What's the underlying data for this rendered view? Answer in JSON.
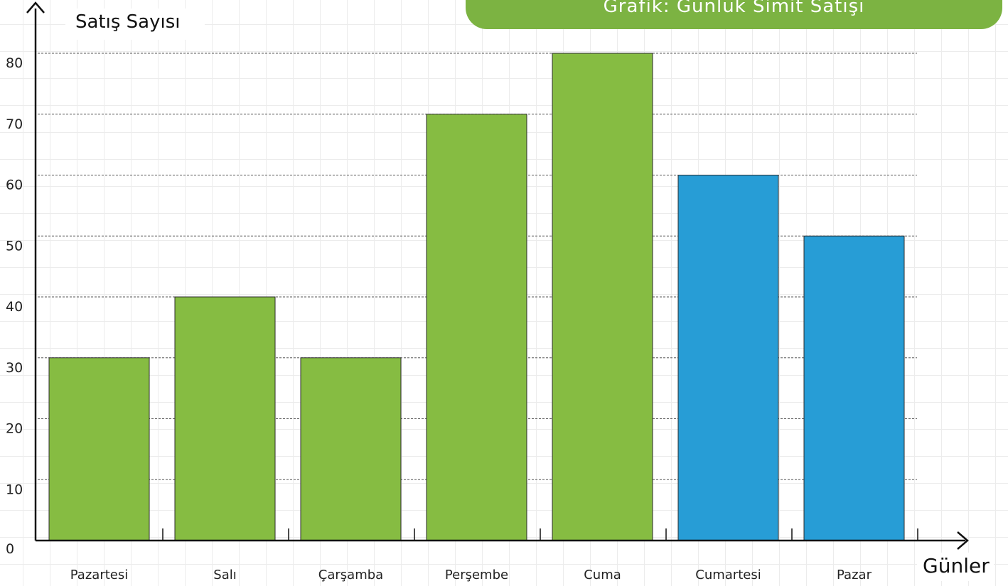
{
  "chart_data": {
    "type": "bar",
    "title": "Grafik: Günlük Simit Satışı",
    "ylabel": "Satış Sayısı",
    "xlabel": "Günler",
    "categories": [
      "Pazartesi",
      "Salı",
      "Çarşamba",
      "Perşembe",
      "Cuma",
      "Cumartesi",
      "Pazar"
    ],
    "values": [
      30,
      40,
      30,
      70,
      80,
      60,
      50
    ],
    "bar_colors": [
      "#86bc42",
      "#86bc42",
      "#86bc42",
      "#86bc42",
      "#86bc42",
      "#279dd6",
      "#279dd6"
    ],
    "yticks": [
      0,
      10,
      20,
      30,
      40,
      50,
      60,
      70,
      80
    ],
    "ylim": [
      0,
      80
    ],
    "grid": "dashed horizontal",
    "legend": "none"
  },
  "colors": {
    "banner": "#7cb342",
    "weekday_bar": "#86bc42",
    "weekend_bar": "#279dd6",
    "axis": "#111111"
  }
}
